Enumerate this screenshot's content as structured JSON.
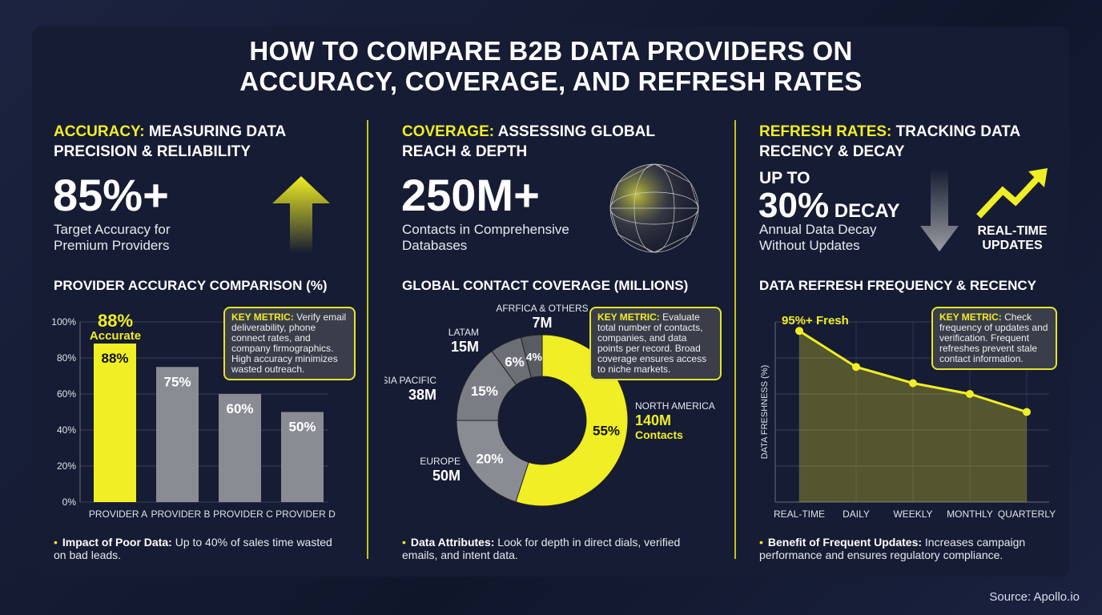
{
  "title_line1": "HOW TO COMPARE B2B DATA PROVIDERS ON",
  "title_line2": "ACCURACY, COVERAGE, AND REFRESH RATES",
  "accuracy": {
    "heading_accent": "ACCURACY:",
    "heading_rest": " MEASURING DATA PRECISION & RELIABILITY",
    "stat": "85%+",
    "stat_label": "Target Accuracy for Premium Providers",
    "chart_title": "PROVIDER ACCURACY COMPARISON (%)",
    "key_label": "KEY METRIC:",
    "key_text": " Verify email deliverability, phone connect rates, and company firmographics. High accuracy minimizes wasted outreach.",
    "note_label": "Impact of Poor Data:",
    "note_text": " Up to 40% of sales time wasted on bad leads.",
    "icon": "up-arrow-icon"
  },
  "coverage": {
    "heading_accent": "COVERAGE:",
    "heading_rest": " ASSESSING GLOBAL REACH & DEPTH",
    "stat": "250M+",
    "stat_label": "Contacts in Comprehensive Databases",
    "chart_title": "GLOBAL CONTACT COVERAGE (MILLIONS)",
    "key_label": "KEY METRIC:",
    "key_text": " Evaluate total number of contacts, companies, and data points per record. Broad coverage ensures access to niche markets.",
    "note_label": "Data Attributes:",
    "note_text": " Look for depth in direct dials, verified emails, and intent data.",
    "icon": "globe-icon"
  },
  "refresh": {
    "heading_accent": "REFRESH RATES:",
    "heading_rest": " TRACKING DATA RECENCY & DECAY",
    "stat_pre": "UP TO",
    "stat": "30%",
    "stat_suffix": " DECAY",
    "stat_label": "Annual Data Decay Without Updates",
    "realtime_label": "REAL-TIME UPDATES",
    "chart_title": "DATA REFRESH FREQUENCY & RECENCY",
    "key_label": "KEY METRIC:",
    "key_text": " Check frequency of updates and verification. Frequent refreshes prevent stale contact information.",
    "note_label": "Benefit of Frequent Updates:",
    "note_text": " Increases campaign performance and ensures regulatory compliance.",
    "icon": "down-arrow-icon"
  },
  "source": "Source: Apollo.io",
  "colors": {
    "accent": "#f0ee24",
    "gray": "#8a8c94",
    "background": "#161c33"
  },
  "chart_data": [
    {
      "type": "bar",
      "categories": [
        "PROVIDER A",
        "PROVIDER B",
        "PROVIDER C",
        "PROVIDER D"
      ],
      "values": [
        88,
        75,
        60,
        50
      ],
      "value_labels": [
        "88%",
        "75%",
        "60%",
        "50%"
      ],
      "ylim": [
        0,
        100
      ],
      "yticks": [
        "0%",
        "20%",
        "40%",
        "60%",
        "80%",
        "100%"
      ],
      "highlight": {
        "value": "88%",
        "label": "Accurate"
      },
      "grid": true
    },
    {
      "type": "pie",
      "donut": true,
      "slices": [
        {
          "name": "NORTH AMERICA",
          "value_label": "140M",
          "extra": "Contacts",
          "percent": 55,
          "pct_label": "55%"
        },
        {
          "name": "EUROPE",
          "value_label": "50M",
          "percent": 20,
          "pct_label": "20%"
        },
        {
          "name": "ASIA PACIFIC",
          "value_label": "38M",
          "percent": 15,
          "pct_label": "15%"
        },
        {
          "name": "LATAM",
          "value_label": "15M",
          "percent": 6,
          "pct_label": "6%"
        },
        {
          "name": "AFRFICA & OTHERS",
          "value_label": "7M",
          "percent": 4,
          "pct_label": "4%"
        }
      ]
    },
    {
      "type": "area",
      "categories": [
        "REAL-TIME",
        "DAILY",
        "WEEKLY",
        "MONTHLY",
        "QUARTERLY"
      ],
      "values": [
        95,
        75,
        66,
        60,
        50
      ],
      "ylabel": "DATA FRESHNESS (%)",
      "ylim": [
        0,
        100
      ],
      "annotation": "95%+ Fresh",
      "grid": true
    }
  ]
}
